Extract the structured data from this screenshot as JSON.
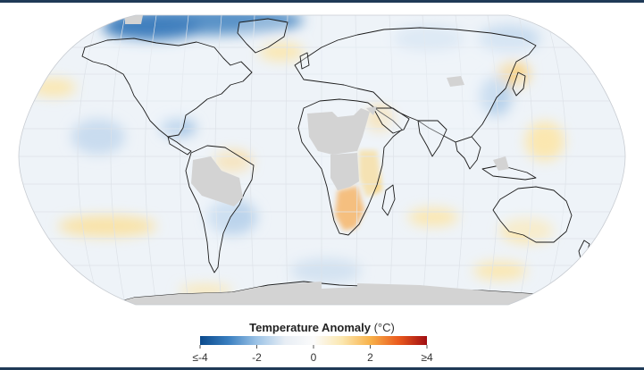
{
  "legend": {
    "title": "Temperature Anomaly",
    "unit": "(°C)",
    "ticks": [
      {
        "value": -4,
        "label": "≤-4"
      },
      {
        "value": -2,
        "label": "-2"
      },
      {
        "value": 0,
        "label": "0"
      },
      {
        "value": 2,
        "label": "2"
      },
      {
        "value": 4,
        "label": "≥4"
      }
    ],
    "range": [
      -4,
      4
    ],
    "colors": [
      "#0b4a8c",
      "#3a7fc0",
      "#9cc3e6",
      "#e8eef5",
      "#fbfbfb",
      "#fbe7b0",
      "#f8b24a",
      "#ea5a1e",
      "#a00d12"
    ]
  },
  "map": {
    "projection": "robinson",
    "ocean_color": "#eef3f8",
    "no_data_color": "#d3d3d3",
    "graticule_color": "#d9dde2",
    "coastline_color": "#222222"
  }
}
